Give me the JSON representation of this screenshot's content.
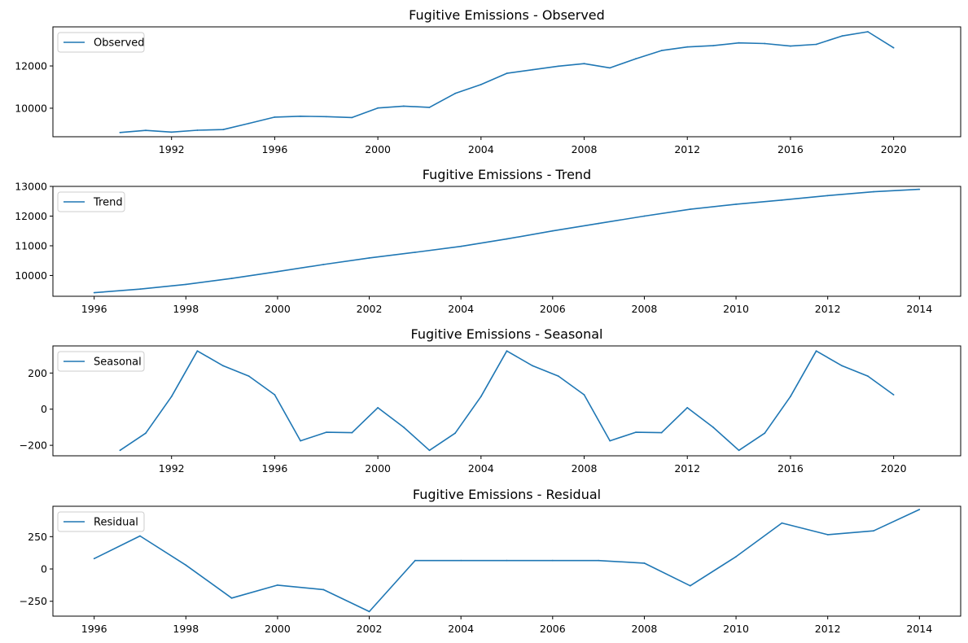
{
  "chart_data": [
    {
      "type": "line",
      "title": "Fugitive Emissions  - Observed",
      "legend": "top-left",
      "grid": false,
      "color": "#1f77b4",
      "xlim": [
        1987.4,
        2022.6
      ],
      "ylim": [
        8650,
        13850
      ],
      "xticks": [
        1992,
        1996,
        2000,
        2004,
        2008,
        2012,
        2016,
        2020
      ],
      "yticks": [
        10000,
        12000
      ],
      "series": [
        {
          "name": "Observed",
          "x": [
            1990,
            1991,
            1992,
            1993,
            1994,
            1995,
            1996,
            1997,
            1998,
            1999,
            2000,
            2001,
            2002,
            2003,
            2004,
            2005,
            2006,
            2007,
            2008,
            2009,
            2010,
            2011,
            2012,
            2013,
            2014,
            2015,
            2016,
            2017,
            2018,
            2019,
            2020
          ],
          "y": [
            8850,
            8950,
            8870,
            8960,
            8990,
            9280,
            9580,
            9620,
            9600,
            9560,
            10010,
            10100,
            10040,
            10700,
            11120,
            11650,
            11820,
            11990,
            12110,
            11910,
            12340,
            12730,
            12900,
            12960,
            13090,
            13060,
            12940,
            13020,
            13420,
            13620,
            12860
          ]
        }
      ]
    },
    {
      "type": "line",
      "title": "Fugitive Emissions  - Trend",
      "legend": "top-left",
      "grid": false,
      "color": "#1f77b4",
      "xlim": [
        1995.1,
        2014.9
      ],
      "ylim": [
        9300,
        13000
      ],
      "xticks": [
        1996,
        1998,
        2000,
        2002,
        2004,
        2006,
        2008,
        2010,
        2012,
        2014
      ],
      "yticks": [
        10000,
        11000,
        12000,
        13000
      ],
      "series": [
        {
          "name": "Trend",
          "x": [
            1996,
            1997,
            1998,
            1999,
            2000,
            2001,
            2002,
            2003,
            2004,
            2005,
            2006,
            2007,
            2008,
            2009,
            2010,
            2011,
            2012,
            2013,
            2014
          ],
          "y": [
            9420,
            9540,
            9700,
            9900,
            10130,
            10370,
            10590,
            10780,
            10980,
            11230,
            11500,
            11750,
            12000,
            12230,
            12400,
            12540,
            12690,
            12820,
            12900
          ]
        }
      ]
    },
    {
      "type": "line",
      "title": "Fugitive Emissions  - Seasonal",
      "legend": "top-left",
      "grid": false,
      "color": "#1f77b4",
      "xlim": [
        1987.4,
        2022.6
      ],
      "ylim": [
        -258,
        350
      ],
      "xticks": [
        1992,
        1996,
        2000,
        2004,
        2008,
        2012,
        2016,
        2020
      ],
      "yticks": [
        -200,
        0,
        200
      ],
      "series": [
        {
          "name": "Seasonal",
          "x": [
            1990,
            1991,
            1992,
            1993,
            1994,
            1995,
            1996,
            1997,
            1998,
            1999,
            2000,
            2001,
            2002,
            2003,
            2004,
            2005,
            2006,
            2007,
            2008,
            2009,
            2010,
            2011,
            2012,
            2013,
            2014,
            2015,
            2016,
            2017,
            2018,
            2019,
            2020
          ],
          "y": [
            -228,
            -133,
            70,
            322,
            240,
            183,
            80,
            -175,
            -128,
            -130,
            8,
            -100,
            -228,
            -133,
            70,
            322,
            240,
            183,
            80,
            -175,
            -128,
            -130,
            8,
            -100,
            -228,
            -133,
            70,
            322,
            240,
            183,
            80
          ]
        }
      ]
    },
    {
      "type": "line",
      "title": "Fugitive Emissions  - Residual",
      "legend": "top-left",
      "grid": false,
      "color": "#1f77b4",
      "xlim": [
        1995.1,
        2014.9
      ],
      "ylim": [
        -365,
        485
      ],
      "xticks": [
        1996,
        1998,
        2000,
        2002,
        2004,
        2006,
        2008,
        2010,
        2012,
        2014
      ],
      "yticks": [
        -250,
        0,
        250
      ],
      "series": [
        {
          "name": "Residual",
          "x": [
            1996,
            1997,
            1998,
            1999,
            2000,
            2001,
            2002,
            2003,
            2004,
            2005,
            2006,
            2007,
            2008,
            2009,
            2010,
            2011,
            2012,
            2013,
            2014
          ],
          "y": [
            80,
            255,
            30,
            -225,
            -125,
            -160,
            -330,
            65,
            65,
            65,
            65,
            65,
            45,
            -130,
            95,
            355,
            265,
            295,
            460
          ]
        }
      ]
    }
  ]
}
